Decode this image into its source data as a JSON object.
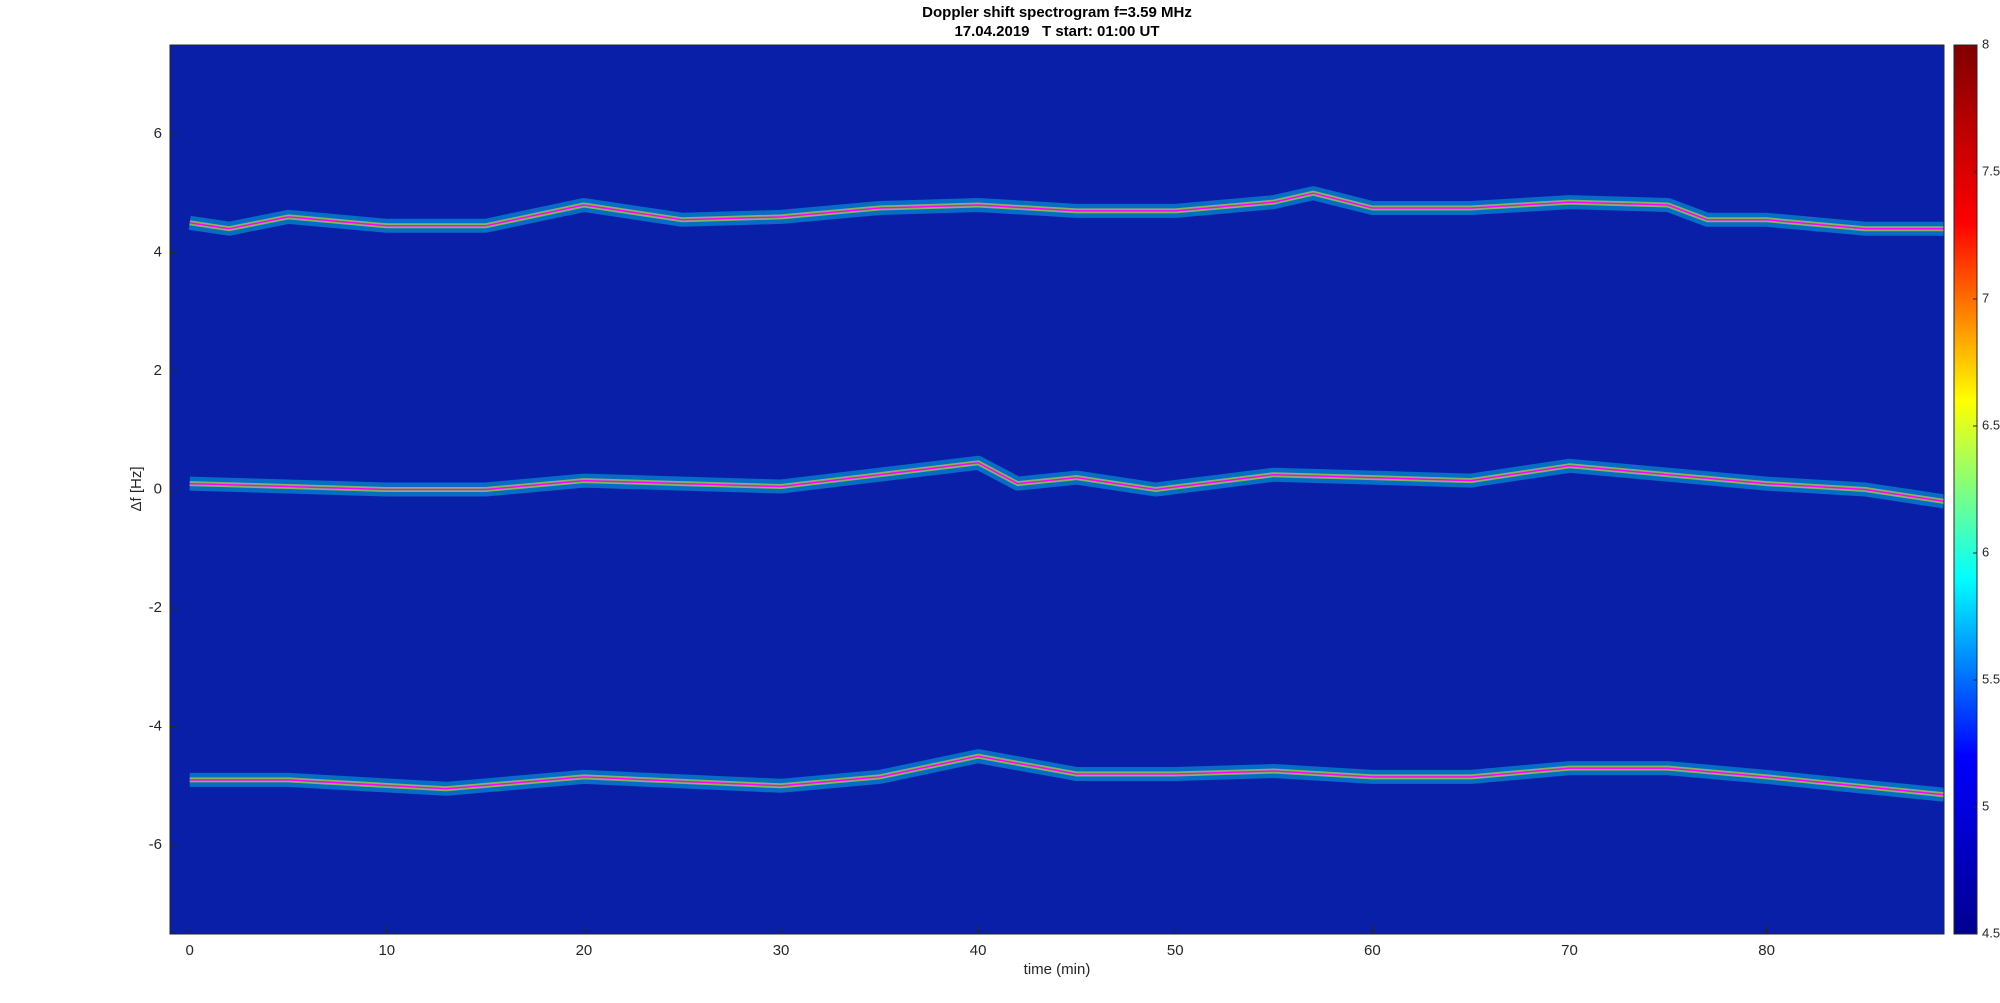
{
  "chart_data": {
    "type": "spectrogram",
    "title": "Doppler shift spectrogram f=3.59 MHz",
    "subtitle": "17.04.2019   T start: 01:00 UT",
    "x_label": "time (min)",
    "y_label": "Δf [Hz]",
    "xlim": [
      -1,
      89
    ],
    "xticks": [
      0,
      10,
      20,
      30,
      40,
      50,
      60,
      70,
      80
    ],
    "ylim": [
      -7.5,
      7.5
    ],
    "yticks": [
      -6,
      -4,
      -2,
      0,
      2,
      4,
      6
    ],
    "background": "#0a1fa8",
    "colormap": [
      "#00008f",
      "#0000ff",
      "#00ffff",
      "#ffff00",
      "#ff0000",
      "#800000"
    ],
    "clim": [
      4.5,
      8
    ],
    "cticks": [
      4.5,
      5,
      5.5,
      6,
      6.5,
      7,
      7.5,
      8
    ],
    "series": [
      {
        "color": "#ff00ff",
        "x": [
          0,
          2,
          5,
          10,
          15,
          20,
          25,
          30,
          35,
          40,
          45,
          50,
          55,
          57,
          60,
          65,
          70,
          75,
          77,
          80,
          85,
          89
        ],
        "values": [
          4.5,
          4.4,
          4.6,
          4.45,
          4.45,
          4.8,
          4.55,
          4.6,
          4.75,
          4.8,
          4.7,
          4.7,
          4.85,
          5.0,
          4.75,
          4.75,
          4.85,
          4.8,
          4.55,
          4.55,
          4.4,
          4.4
        ]
      },
      {
        "color": "#ff00ff",
        "x": [
          0,
          5,
          10,
          15,
          20,
          25,
          30,
          35,
          40,
          42,
          45,
          49,
          55,
          60,
          65,
          70,
          75,
          80,
          85,
          89
        ],
        "values": [
          0.1,
          0.05,
          0,
          0,
          0.15,
          0.1,
          0.05,
          0.25,
          0.45,
          0.1,
          0.2,
          0,
          0.25,
          0.2,
          0.15,
          0.4,
          0.25,
          0.1,
          0,
          -0.2
        ]
      },
      {
        "color": "#ff00ff",
        "x": [
          0,
          5,
          13,
          20,
          30,
          35,
          40,
          45,
          50,
          55,
          60,
          65,
          70,
          75,
          80,
          86,
          89
        ],
        "values": [
          -4.9,
          -4.9,
          -5.05,
          -4.85,
          -5.0,
          -4.85,
          -4.5,
          -4.8,
          -4.8,
          -4.75,
          -4.85,
          -4.85,
          -4.7,
          -4.7,
          -4.85,
          -5.05,
          -5.15
        ]
      }
    ]
  }
}
